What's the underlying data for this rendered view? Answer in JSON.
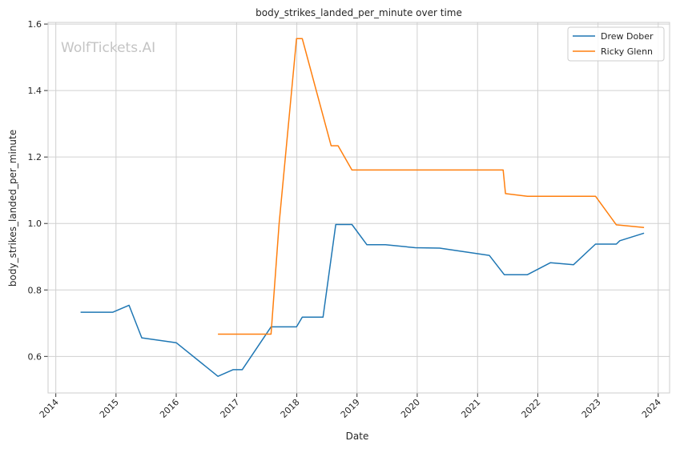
{
  "chart_data": {
    "type": "line",
    "title": "body_strikes_landed_per_minute over time",
    "xlabel": "Date",
    "ylabel": "body_strikes_landed_per_minute",
    "watermark": "WolfTickets.AI",
    "xlim": [
      "2013-11-15",
      "2024-03-10"
    ],
    "ylim": [
      0.49,
      1.605
    ],
    "x_ticks": [
      "2014-01-01",
      "2015-01-01",
      "2016-01-01",
      "2017-01-01",
      "2018-01-01",
      "2019-01-01",
      "2020-01-01",
      "2021-01-01",
      "2022-01-01",
      "2023-01-01",
      "2024-01-01"
    ],
    "x_tick_labels": [
      "2014",
      "2015",
      "2016",
      "2017",
      "2018",
      "2019",
      "2020",
      "2021",
      "2022",
      "2023",
      "2024"
    ],
    "y_ticks": [
      0.6,
      0.8,
      1.0,
      1.2,
      1.4,
      1.6
    ],
    "y_tick_labels": [
      "0.6",
      "0.8",
      "1.0",
      "1.2",
      "1.4",
      "1.6"
    ],
    "grid": true,
    "legend_position": "top-right",
    "series": [
      {
        "name": "Drew Dober",
        "color": "#1f77b4",
        "points": [
          [
            "2014-05-31",
            0.733
          ],
          [
            "2014-12-13",
            0.733
          ],
          [
            "2015-03-21",
            0.754
          ],
          [
            "2015-06-06",
            0.656
          ],
          [
            "2016-01-02",
            0.641
          ],
          [
            "2016-09-10",
            0.54
          ],
          [
            "2016-12-10",
            0.56
          ],
          [
            "2017-02-04",
            0.56
          ],
          [
            "2017-07-29",
            0.689
          ],
          [
            "2017-12-30",
            0.689
          ],
          [
            "2018-02-03",
            0.718
          ],
          [
            "2018-06-09",
            0.718
          ],
          [
            "2018-08-25",
            0.997
          ],
          [
            "2018-12-01",
            0.997
          ],
          [
            "2019-03-02",
            0.936
          ],
          [
            "2019-06-22",
            0.936
          ],
          [
            "2019-12-21",
            0.927
          ],
          [
            "2020-05-16",
            0.926
          ],
          [
            "2021-03-13",
            0.904
          ],
          [
            "2021-06-12",
            0.846
          ],
          [
            "2021-10-30",
            0.846
          ],
          [
            "2022-03-19",
            0.882
          ],
          [
            "2022-08-06",
            0.876
          ],
          [
            "2022-12-17",
            0.938
          ],
          [
            "2023-04-22",
            0.938
          ],
          [
            "2023-05-13",
            0.948
          ],
          [
            "2023-10-07",
            0.971
          ]
        ]
      },
      {
        "name": "Ricky Glenn",
        "color": "#ff7f0e",
        "points": [
          [
            "2016-09-10",
            0.667
          ],
          [
            "2017-07-29",
            0.667
          ],
          [
            "2017-09-16",
            1.0
          ],
          [
            "2017-12-30",
            1.556
          ],
          [
            "2018-02-03",
            1.556
          ],
          [
            "2018-07-28",
            1.234
          ],
          [
            "2018-09-08",
            1.234
          ],
          [
            "2018-12-01",
            1.161
          ],
          [
            "2021-06-05",
            1.161
          ],
          [
            "2021-06-19",
            1.09
          ],
          [
            "2021-10-30",
            1.082
          ],
          [
            "2022-12-17",
            1.082
          ],
          [
            "2023-04-22",
            0.996
          ],
          [
            "2023-10-07",
            0.988
          ]
        ]
      }
    ]
  }
}
